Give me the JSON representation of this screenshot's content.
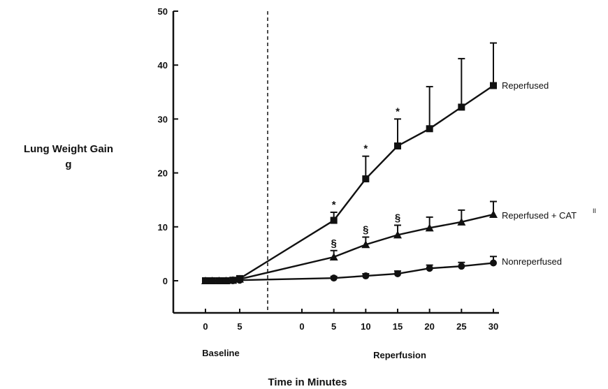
{
  "chart_data": {
    "type": "line",
    "title": "",
    "ylabel_lines": [
      "Lung Weight Gain",
      "g"
    ],
    "xlabel": "Time in Minutes",
    "ylim": [
      -6,
      50
    ],
    "y_ticks": [
      0,
      10,
      20,
      30,
      40,
      50
    ],
    "phases": [
      {
        "name": "Baseline",
        "ticks": [
          0,
          5
        ]
      },
      {
        "name": "Reperfusion",
        "ticks": [
          0,
          5,
          10,
          15,
          20,
          25,
          30
        ]
      }
    ],
    "divider": "dashed vertical line between Baseline and Reperfusion",
    "series": [
      {
        "name": "Reperfused",
        "marker": "square",
        "superscript": "",
        "baseline": {
          "x": [
            0,
            1,
            2,
            3,
            4,
            5
          ],
          "y": [
            0,
            0,
            0,
            0,
            0.1,
            0.4
          ],
          "err": [
            0,
            0,
            0,
            0,
            0,
            0.4
          ]
        },
        "reperfusion": {
          "x": [
            5,
            10,
            15,
            20,
            25,
            30
          ],
          "y": [
            11.2,
            18.9,
            25.0,
            28.2,
            32.2,
            36.2
          ],
          "err": [
            1.5,
            4.2,
            5.0,
            7.8,
            9.0,
            7.9
          ]
        },
        "significance": [
          {
            "x": 5,
            "mark": "*"
          },
          {
            "x": 10,
            "mark": "*"
          },
          {
            "x": 15,
            "mark": "*"
          }
        ]
      },
      {
        "name": "Reperfused + CAT",
        "marker": "triangle",
        "superscript": "II",
        "baseline": {
          "x": [
            0,
            1,
            2,
            3,
            4,
            5
          ],
          "y": [
            0,
            0,
            0,
            0,
            0.1,
            0.3
          ],
          "err": [
            0,
            0,
            0,
            0,
            0,
            0.3
          ]
        },
        "reperfusion": {
          "x": [
            5,
            10,
            15,
            20,
            25,
            30
          ],
          "y": [
            4.4,
            6.7,
            8.5,
            9.8,
            10.9,
            12.3
          ],
          "err": [
            1.2,
            1.4,
            1.8,
            2.0,
            2.2,
            2.4
          ]
        },
        "significance": [
          {
            "x": 5,
            "mark": "§"
          },
          {
            "x": 10,
            "mark": "§"
          },
          {
            "x": 15,
            "mark": "§"
          }
        ]
      },
      {
        "name": "Nonreperfused",
        "marker": "circle",
        "superscript": "",
        "baseline": {
          "x": [
            0,
            1,
            2,
            3,
            4,
            5
          ],
          "y": [
            0,
            0,
            0,
            0,
            0,
            0.1
          ],
          "err": [
            0,
            0,
            0,
            0,
            0,
            0
          ]
        },
        "reperfusion": {
          "x": [
            5,
            10,
            15,
            20,
            25,
            30
          ],
          "y": [
            0.5,
            0.9,
            1.3,
            2.3,
            2.7,
            3.3
          ],
          "err": [
            0.3,
            0.4,
            0.5,
            0.6,
            0.7,
            1.2
          ]
        },
        "significance": []
      }
    ]
  }
}
